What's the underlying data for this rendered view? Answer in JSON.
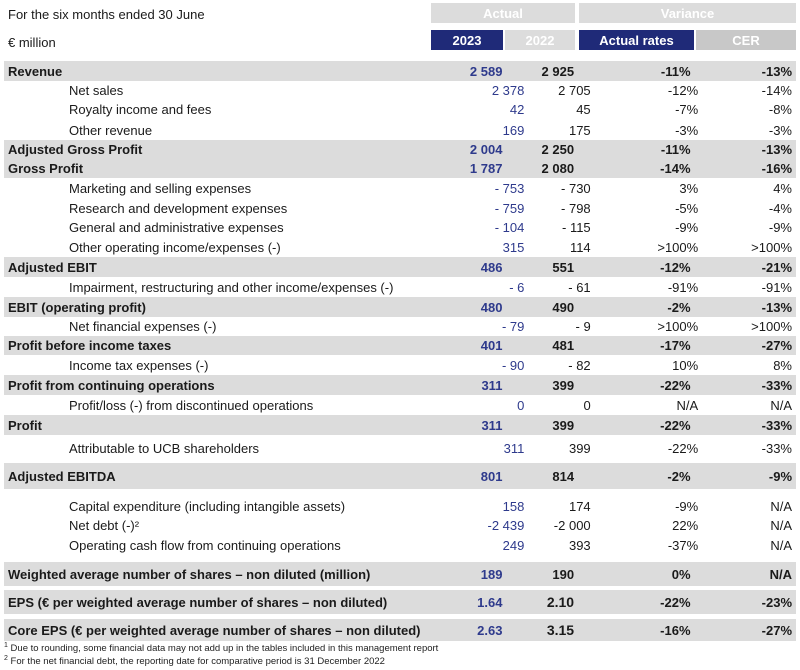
{
  "header": {
    "period": "For the six months ended 30 June",
    "unit": "€ million",
    "group_actual": "Actual",
    "group_variance": "Variance",
    "col_2023": "2023",
    "col_2022": "2022",
    "col_actual_rates": "Actual rates",
    "col_cer": "CER"
  },
  "rows": [
    {
      "label": "Revenue",
      "v2023": "2 589",
      "v2022": "2 925",
      "ar": "-11%",
      "cer": "-13%"
    },
    {
      "label": "Net sales",
      "v2023": "2 378",
      "v2022": "2 705",
      "ar": "-12%",
      "cer": "-14%"
    },
    {
      "label": "Royalty income and fees",
      "v2023": "42",
      "v2022": "45",
      "ar": "-7%",
      "cer": "-8%"
    },
    {
      "label": "Other revenue",
      "v2023": "169",
      "v2022": "175",
      "ar": "-3%",
      "cer": "-3%"
    },
    {
      "label": "Adjusted Gross Profit",
      "v2023": "2 004",
      "v2022": "2 250",
      "ar": "-11%",
      "cer": "-13%"
    },
    {
      "label": "Gross Profit",
      "v2023": "1 787",
      "v2022": "2 080",
      "ar": "-14%",
      "cer": "-16%"
    },
    {
      "label": "Marketing and selling expenses",
      "v2023": "- 753",
      "v2022": "- 730",
      "ar": "3%",
      "cer": "4%"
    },
    {
      "label": "Research and development expenses",
      "v2023": "- 759",
      "v2022": "- 798",
      "ar": "-5%",
      "cer": "-4%"
    },
    {
      "label": "General and administrative expenses",
      "v2023": "- 104",
      "v2022": "- 115",
      "ar": "-9%",
      "cer": "-9%"
    },
    {
      "label": "Other operating income/expenses (-)",
      "v2023": "315",
      "v2022": "114",
      "ar": ">100%",
      "cer": ">100%"
    },
    {
      "label": "Adjusted EBIT",
      "v2023": "486",
      "v2022": "551",
      "ar": "-12%",
      "cer": "-21%"
    },
    {
      "label": "Impairment, restructuring and other income/expenses (-)",
      "v2023": "- 6",
      "v2022": "- 61",
      "ar": "-91%",
      "cer": "-91%"
    },
    {
      "label": "EBIT (operating profit)",
      "v2023": "480",
      "v2022": "490",
      "ar": "-2%",
      "cer": "-13%"
    },
    {
      "label": "Net financial expenses (-)",
      "v2023": "- 79",
      "v2022": "- 9",
      "ar": ">100%",
      "cer": ">100%"
    },
    {
      "label": "Profit before income taxes",
      "v2023": "401",
      "v2022": "481",
      "ar": "-17%",
      "cer": "-27%"
    },
    {
      "label": "Income tax expenses (-)",
      "v2023": "- 90",
      "v2022": "- 82",
      "ar": "10%",
      "cer": "8%"
    },
    {
      "label": "Profit from continuing operations",
      "v2023": "311",
      "v2022": "399",
      "ar": "-22%",
      "cer": "-33%"
    },
    {
      "label": "Profit/loss (-) from discontinued operations",
      "v2023": "0",
      "v2022": "0",
      "ar": "N/A",
      "cer": "N/A"
    },
    {
      "label": "Profit",
      "v2023": "311",
      "v2022": "399",
      "ar": "-22%",
      "cer": "-33%"
    },
    {
      "label": "Attributable to UCB shareholders",
      "v2023": "311",
      "v2022": "399",
      "ar": "-22%",
      "cer": "-33%"
    },
    {
      "label": "Adjusted EBITDA",
      "v2023": "801",
      "v2022": "814",
      "ar": "-2%",
      "cer": "-9%"
    },
    {
      "label": "Capital expenditure (including intangible assets)",
      "v2023": "158",
      "v2022": "174",
      "ar": "-9%",
      "cer": "N/A"
    },
    {
      "label": "Net debt (-)²",
      "v2023": "-2 439",
      "v2022": "-2 000",
      "ar": "22%",
      "cer": "N/A"
    },
    {
      "label": "Operating cash flow from continuing operations",
      "v2023": "249",
      "v2022": "393",
      "ar": "-37%",
      "cer": "N/A"
    },
    {
      "label": "Weighted average number of shares – non diluted (million)",
      "v2023": "189",
      "v2022": "190",
      "ar": "0%",
      "cer": "N/A"
    },
    {
      "label": "EPS (€ per weighted average number of shares – non diluted)",
      "v2023": "1.64",
      "v2022": "2.10",
      "ar": "-22%",
      "cer": "-23%"
    },
    {
      "label": "Core EPS (€ per weighted average number of shares – non diluted)",
      "v2023": "2.63",
      "v2022": "3.15",
      "ar": "-16%",
      "cer": "-27%"
    }
  ],
  "footnotes": {
    "fn1_mark": "1",
    "fn1": "Due to rounding, some financial data may not add up in the tables included in this management report",
    "fn2_mark": "2",
    "fn2": "For the net financial debt, the reporting date for comparative period is 31 December 2022"
  }
}
